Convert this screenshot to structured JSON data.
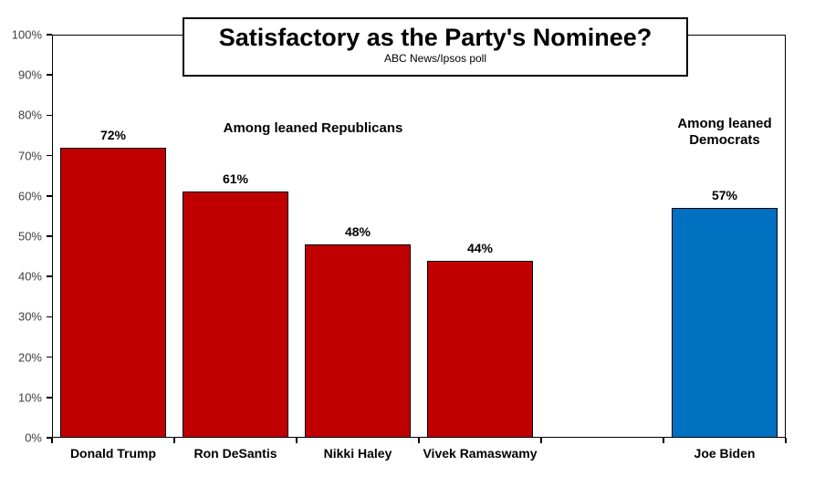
{
  "title": "Satisfactory as the Party's Nominee?",
  "subtitle": "ABC News/Ipsos poll",
  "annotations": {
    "republicans": "Among leaned Republicans",
    "democrats": "Among leaned Democrats"
  },
  "colors": {
    "republican_bar": "#C00000",
    "democrat_bar": "#0070C0",
    "bar_border": "#000000",
    "axis": "#000000",
    "tick_label": "#3f3f3f"
  },
  "chart_data": {
    "type": "bar",
    "title": "Satisfactory as the Party's Nominee?",
    "subtitle": "ABC News/Ipsos poll",
    "xlabel": "",
    "ylabel": "",
    "ylim": [
      0,
      100
    ],
    "grid": false,
    "legend": null,
    "y_tick_labels": [
      "0%",
      "10%",
      "20%",
      "30%",
      "40%",
      "50%",
      "60%",
      "70%",
      "80%",
      "90%",
      "100%"
    ],
    "slots": 6,
    "bars": [
      {
        "label": "Donald Trump",
        "value": 72,
        "display": "72%",
        "group": "republican",
        "slot": 0
      },
      {
        "label": "Ron DeSantis",
        "value": 61,
        "display": "61%",
        "group": "republican",
        "slot": 1
      },
      {
        "label": "Nikki Haley",
        "value": 48,
        "display": "48%",
        "group": "republican",
        "slot": 2
      },
      {
        "label": "Vivek Ramaswamy",
        "value": 44,
        "display": "44%",
        "group": "republican",
        "slot": 3
      },
      {
        "label": "Joe Biden",
        "value": 57,
        "display": "57%",
        "group": "democrat",
        "slot": 5
      }
    ]
  }
}
